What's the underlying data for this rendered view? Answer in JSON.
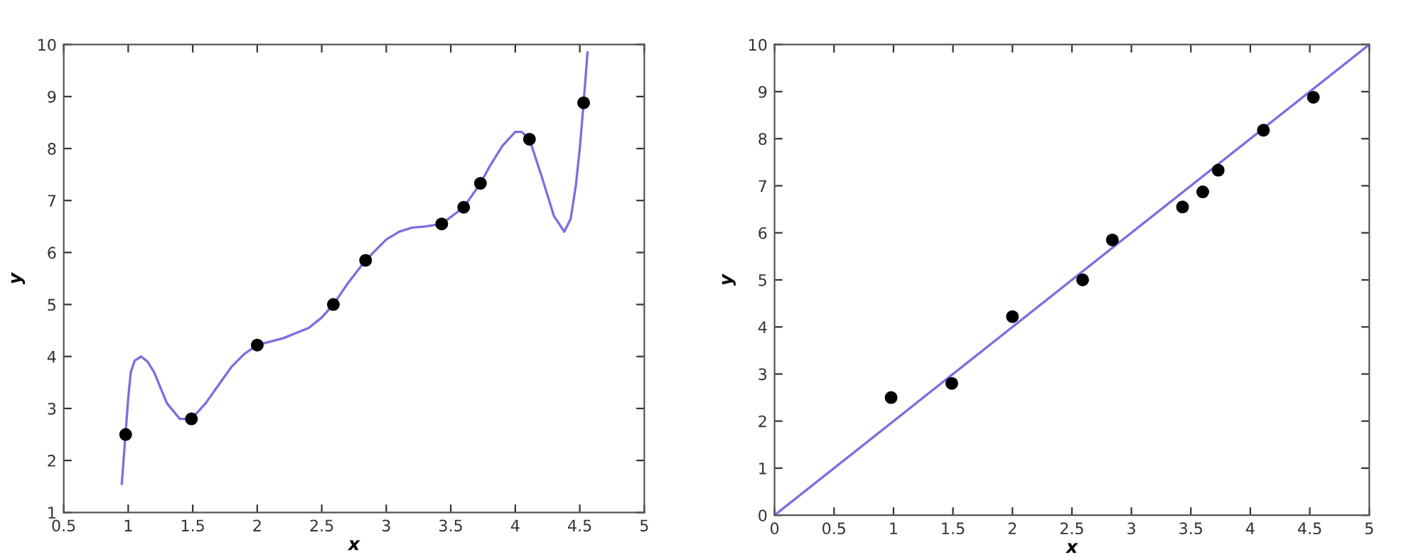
{
  "chart_data": [
    {
      "type": "scatter",
      "xlabel": "x",
      "ylabel": "y",
      "xlim": [
        0.5,
        5
      ],
      "ylim": [
        1,
        10
      ],
      "xticks": [
        0.5,
        1,
        1.5,
        2,
        2.5,
        3,
        3.5,
        4,
        4.5,
        5
      ],
      "yticks": [
        1,
        2,
        3,
        4,
        5,
        6,
        7,
        8,
        9,
        10
      ],
      "grid": false,
      "series": [
        {
          "type": "line",
          "marker": "none",
          "color": "#7b6fe0",
          "x": [
            0.95,
            1.0,
            1.02,
            1.05,
            1.1,
            1.15,
            1.2,
            1.3,
            1.4,
            1.49,
            1.6,
            1.7,
            1.8,
            1.9,
            2.0,
            2.2,
            2.4,
            2.5,
            2.59,
            2.7,
            2.84,
            3.0,
            3.1,
            3.2,
            3.3,
            3.43,
            3.6,
            3.73,
            3.8,
            3.9,
            4.0,
            4.05,
            4.11,
            4.2,
            4.3,
            4.38,
            4.43,
            4.47,
            4.5,
            4.53,
            4.56
          ],
          "values": [
            1.55,
            3.2,
            3.7,
            3.92,
            4.0,
            3.9,
            3.7,
            3.1,
            2.8,
            2.8,
            3.1,
            3.45,
            3.8,
            4.05,
            4.22,
            4.35,
            4.55,
            4.75,
            5.0,
            5.4,
            5.85,
            6.25,
            6.4,
            6.48,
            6.5,
            6.55,
            6.87,
            7.33,
            7.65,
            8.05,
            8.32,
            8.32,
            8.18,
            7.5,
            6.7,
            6.4,
            6.65,
            7.3,
            8.0,
            8.88,
            9.85
          ]
        },
        {
          "marker": "circle",
          "color": "#000000",
          "x": [
            0.98,
            1.49,
            2.0,
            2.59,
            2.84,
            3.43,
            3.6,
            3.73,
            4.11,
            4.53
          ],
          "values": [
            2.5,
            2.8,
            4.22,
            5.0,
            5.85,
            6.55,
            6.87,
            7.33,
            8.18,
            8.88
          ]
        }
      ]
    },
    {
      "type": "scatter",
      "xlabel": "x",
      "ylabel": "y",
      "xlim": [
        0,
        5
      ],
      "ylim": [
        0,
        10
      ],
      "xticks": [
        0,
        0.5,
        1,
        1.5,
        2,
        2.5,
        3,
        3.5,
        4,
        4.5,
        5
      ],
      "yticks": [
        0,
        1,
        2,
        3,
        4,
        5,
        6,
        7,
        8,
        9,
        10
      ],
      "grid": false,
      "series": [
        {
          "type": "line",
          "marker": "none",
          "color": "#7b6fe0",
          "x": [
            0,
            5
          ],
          "values": [
            0,
            10
          ]
        },
        {
          "marker": "circle",
          "color": "#000000",
          "x": [
            0.98,
            1.49,
            2.0,
            2.59,
            2.84,
            3.43,
            3.6,
            3.73,
            4.11,
            4.53
          ],
          "values": [
            2.5,
            2.8,
            4.22,
            5.0,
            5.85,
            6.55,
            6.87,
            7.33,
            8.18,
            8.88
          ]
        }
      ]
    }
  ]
}
